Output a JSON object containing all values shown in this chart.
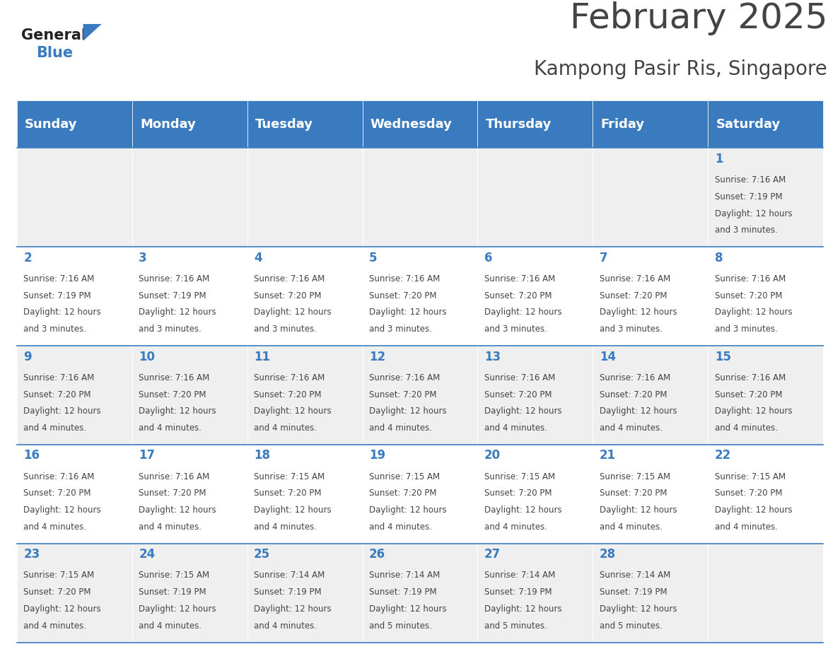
{
  "title": "February 2025",
  "subtitle": "Kampong Pasir Ris, Singapore",
  "header_color": "#3a7bbf",
  "header_text_color": "#ffffff",
  "cell_bg_even": "#efefef",
  "cell_bg_odd": "#ffffff",
  "day_names": [
    "Sunday",
    "Monday",
    "Tuesday",
    "Wednesday",
    "Thursday",
    "Friday",
    "Saturday"
  ],
  "text_color": "#444444",
  "number_color": "#3a7bbf",
  "logo_general_color": "#222222",
  "logo_blue_color": "#3a7bbf",
  "calendar": [
    [
      null,
      null,
      null,
      null,
      null,
      null,
      1
    ],
    [
      2,
      3,
      4,
      5,
      6,
      7,
      8
    ],
    [
      9,
      10,
      11,
      12,
      13,
      14,
      15
    ],
    [
      16,
      17,
      18,
      19,
      20,
      21,
      22
    ],
    [
      23,
      24,
      25,
      26,
      27,
      28,
      null
    ]
  ],
  "cell_data": {
    "1": {
      "sunrise": "7:16 AM",
      "sunset": "7:19 PM",
      "daylight": "12 hours and 3 minutes."
    },
    "2": {
      "sunrise": "7:16 AM",
      "sunset": "7:19 PM",
      "daylight": "12 hours and 3 minutes."
    },
    "3": {
      "sunrise": "7:16 AM",
      "sunset": "7:19 PM",
      "daylight": "12 hours and 3 minutes."
    },
    "4": {
      "sunrise": "7:16 AM",
      "sunset": "7:20 PM",
      "daylight": "12 hours and 3 minutes."
    },
    "5": {
      "sunrise": "7:16 AM",
      "sunset": "7:20 PM",
      "daylight": "12 hours and 3 minutes."
    },
    "6": {
      "sunrise": "7:16 AM",
      "sunset": "7:20 PM",
      "daylight": "12 hours and 3 minutes."
    },
    "7": {
      "sunrise": "7:16 AM",
      "sunset": "7:20 PM",
      "daylight": "12 hours and 3 minutes."
    },
    "8": {
      "sunrise": "7:16 AM",
      "sunset": "7:20 PM",
      "daylight": "12 hours and 3 minutes."
    },
    "9": {
      "sunrise": "7:16 AM",
      "sunset": "7:20 PM",
      "daylight": "12 hours and 4 minutes."
    },
    "10": {
      "sunrise": "7:16 AM",
      "sunset": "7:20 PM",
      "daylight": "12 hours and 4 minutes."
    },
    "11": {
      "sunrise": "7:16 AM",
      "sunset": "7:20 PM",
      "daylight": "12 hours and 4 minutes."
    },
    "12": {
      "sunrise": "7:16 AM",
      "sunset": "7:20 PM",
      "daylight": "12 hours and 4 minutes."
    },
    "13": {
      "sunrise": "7:16 AM",
      "sunset": "7:20 PM",
      "daylight": "12 hours and 4 minutes."
    },
    "14": {
      "sunrise": "7:16 AM",
      "sunset": "7:20 PM",
      "daylight": "12 hours and 4 minutes."
    },
    "15": {
      "sunrise": "7:16 AM",
      "sunset": "7:20 PM",
      "daylight": "12 hours and 4 minutes."
    },
    "16": {
      "sunrise": "7:16 AM",
      "sunset": "7:20 PM",
      "daylight": "12 hours and 4 minutes."
    },
    "17": {
      "sunrise": "7:16 AM",
      "sunset": "7:20 PM",
      "daylight": "12 hours and 4 minutes."
    },
    "18": {
      "sunrise": "7:15 AM",
      "sunset": "7:20 PM",
      "daylight": "12 hours and 4 minutes."
    },
    "19": {
      "sunrise": "7:15 AM",
      "sunset": "7:20 PM",
      "daylight": "12 hours and 4 minutes."
    },
    "20": {
      "sunrise": "7:15 AM",
      "sunset": "7:20 PM",
      "daylight": "12 hours and 4 minutes."
    },
    "21": {
      "sunrise": "7:15 AM",
      "sunset": "7:20 PM",
      "daylight": "12 hours and 4 minutes."
    },
    "22": {
      "sunrise": "7:15 AM",
      "sunset": "7:20 PM",
      "daylight": "12 hours and 4 minutes."
    },
    "23": {
      "sunrise": "7:15 AM",
      "sunset": "7:20 PM",
      "daylight": "12 hours and 4 minutes."
    },
    "24": {
      "sunrise": "7:15 AM",
      "sunset": "7:19 PM",
      "daylight": "12 hours and 4 minutes."
    },
    "25": {
      "sunrise": "7:14 AM",
      "sunset": "7:19 PM",
      "daylight": "12 hours and 4 minutes."
    },
    "26": {
      "sunrise": "7:14 AM",
      "sunset": "7:19 PM",
      "daylight": "12 hours and 5 minutes."
    },
    "27": {
      "sunrise": "7:14 AM",
      "sunset": "7:19 PM",
      "daylight": "12 hours and 5 minutes."
    },
    "28": {
      "sunrise": "7:14 AM",
      "sunset": "7:19 PM",
      "daylight": "12 hours and 5 minutes."
    }
  },
  "title_fontsize": 36,
  "subtitle_fontsize": 20,
  "header_fontsize": 13,
  "day_number_fontsize": 12,
  "cell_text_fontsize": 8.5,
  "figsize": [
    11.88,
    9.18
  ],
  "dpi": 100
}
